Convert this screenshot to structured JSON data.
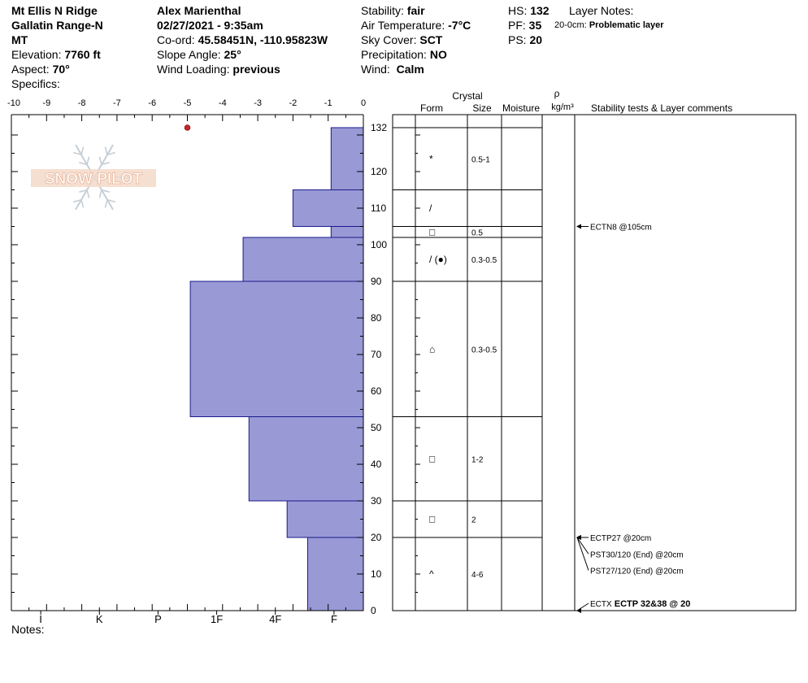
{
  "header": {
    "location": "Mt Ellis N Ridge",
    "range": "Gallatin Range-N",
    "state": "MT",
    "elevation_label": "Elevation:",
    "elevation": "7760 ft",
    "aspect_label": "Aspect:",
    "aspect": "70°",
    "specifics_label": "Specifics:",
    "observer": "Alex Marienthal",
    "datetime": "02/27/2021 - 9:35am",
    "coord_label": "Co-ord:",
    "coord": "45.58451N, -110.95823W",
    "slope_label": "Slope Angle:",
    "slope": "25°",
    "wind_loading_label": "Wind Loading:",
    "wind_loading": "previous",
    "stability_label": "Stability:",
    "stability": "fair",
    "air_temp_label": "Air Temperature:",
    "air_temp": "-7°C",
    "sky_label": "Sky Cover:",
    "sky": "SCT",
    "precip_label": "Precipitation:",
    "precip": "NO",
    "wind_label": "Wind:",
    "wind": "Calm",
    "hs_label": "HS:",
    "hs": "132",
    "pf_label": "PF:",
    "pf": "35",
    "ps_label": "PS:",
    "ps": "20",
    "layer_notes_label": "Layer Notes:",
    "layer_note_range": "20-0cm:",
    "layer_note_text": "Problematic layer"
  },
  "notes_label": "Notes:",
  "logo_text": "SNOW PILOT",
  "colors": {
    "hardness_fill": "#9999d6",
    "temp_point": "#c0282d"
  },
  "chart_data": {
    "type": "bar",
    "temperature_axis": {
      "ticks": [
        -10,
        -9,
        -8,
        -7,
        -6,
        -5,
        -4,
        -3,
        -2,
        -1,
        0
      ],
      "tick_labels": [
        "-10",
        "-9",
        "-8",
        "-7",
        "-6",
        "-5",
        "-4",
        "-3",
        "-2",
        "-1",
        "0"
      ],
      "range": [
        -10,
        0
      ]
    },
    "height_axis": {
      "ticks": [
        0,
        10,
        20,
        30,
        40,
        50,
        60,
        70,
        80,
        90,
        100,
        110,
        120,
        132
      ],
      "tick_labels": [
        "0",
        "10",
        "20",
        "30",
        "40",
        "50",
        "60",
        "70",
        "80",
        "90",
        "100",
        "110",
        "120",
        "132"
      ],
      "range": [
        0,
        132
      ]
    },
    "hardness_axis": {
      "categories": [
        "I",
        "K",
        "P",
        "1F",
        "4F",
        "F"
      ],
      "hardness_values": [
        6,
        5,
        4,
        3,
        2,
        1
      ]
    },
    "temperature_points": [
      {
        "height": 132,
        "temp": -5
      }
    ],
    "hardness_layers": [
      {
        "top": 132,
        "bottom": 115,
        "hardness": 0.55
      },
      {
        "top": 115,
        "bottom": 105,
        "hardness": 1.2
      },
      {
        "top": 105,
        "bottom": 102,
        "hardness": 0.55
      },
      {
        "top": 102,
        "bottom": 90,
        "hardness": 2.05
      },
      {
        "top": 90,
        "bottom": 53,
        "hardness": 2.95
      },
      {
        "top": 53,
        "bottom": 30,
        "hardness": 1.95
      },
      {
        "top": 30,
        "bottom": 20,
        "hardness": 1.3
      },
      {
        "top": 20,
        "bottom": 0,
        "hardness": 0.95
      }
    ],
    "crystal_table": {
      "headers": {
        "crystal": "Crystal",
        "form": "Form",
        "size": "Size",
        "moisture": "Moisture",
        "rho": "ρ",
        "rho_unit": "kg/m³",
        "comments": "Stability tests & Layer comments"
      },
      "boundaries": [
        132,
        115,
        105,
        102,
        90,
        53,
        30,
        20,
        0
      ],
      "layers": [
        {
          "mid": 123.5,
          "form": "*",
          "size": "0.5-1"
        },
        {
          "mid": 110,
          "form": "/",
          "size": ""
        },
        {
          "mid": 103.5,
          "form": "□",
          "size": "0.5"
        },
        {
          "mid": 96,
          "form": "/ (●)",
          "size": "0.3-0.5"
        },
        {
          "mid": 71.5,
          "form": "⌂",
          "size": "0.3-0.5"
        },
        {
          "mid": 41.5,
          "form": "□",
          "size": "1-2"
        },
        {
          "mid": 25,
          "form": "□",
          "size": "2"
        },
        {
          "mid": 10,
          "form": "^",
          "size": "4-6"
        }
      ]
    },
    "stability_tests": [
      {
        "height": 105,
        "text": "ECTN8 @105cm",
        "y_label": 105
      },
      {
        "height": 20,
        "text": "ECTP27 @20cm",
        "y_label": 20
      },
      {
        "height": 20,
        "text": "PST30/120 (End) @20cm",
        "y_label": 15.5
      },
      {
        "height": 20,
        "text": "PST27/120 (End) @20cm",
        "y_label": 11
      },
      {
        "height": 0,
        "text": "ECTX",
        "bold_text": "ECTP 32&38 @ 20",
        "y_label": 2
      }
    ]
  }
}
